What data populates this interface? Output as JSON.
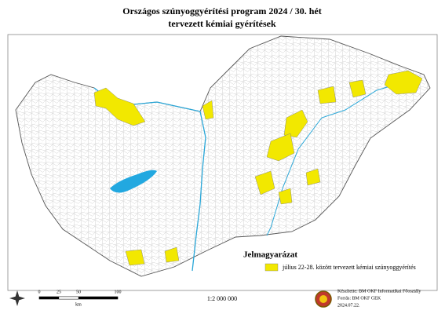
{
  "header": {
    "title": "Országos szúnyoggyérítési program 2024 / 30. hét",
    "subtitle": "tervezett kémiai gyérítések"
  },
  "legend": {
    "title": "Jelmagyarázat",
    "items": [
      "július 22-28. között tervezett kémiai szúnyoggyérítés"
    ]
  },
  "scale_bar": {
    "labels": [
      0,
      25,
      50,
      100
    ],
    "unit": "km"
  },
  "scale": "1:2 000 000",
  "credits": [
    "Készítette: BM OKF Informatikai Főosztály",
    "Forrás: BM OKF GEK",
    "2024.07.22."
  ]
}
